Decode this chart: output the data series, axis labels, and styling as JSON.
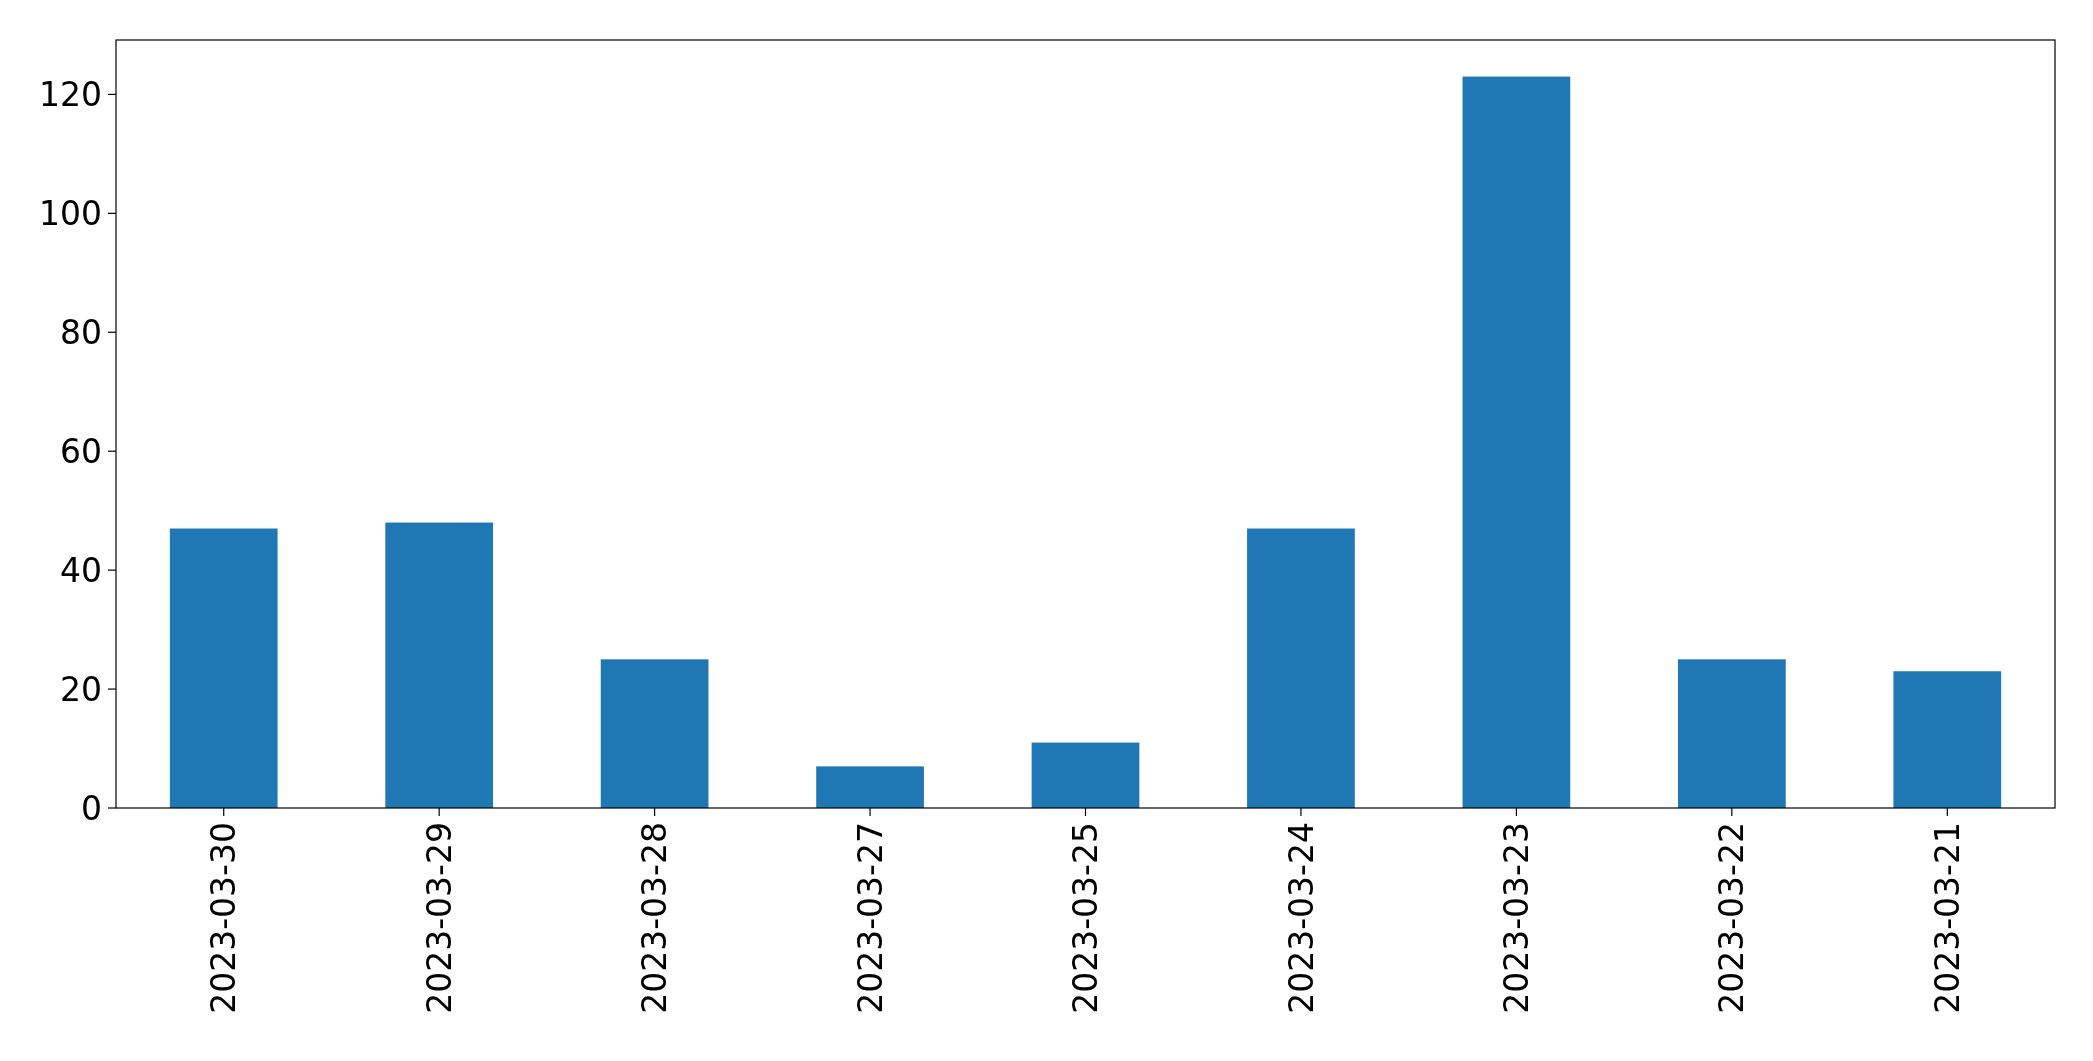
{
  "chart_data": {
    "type": "bar",
    "categories": [
      "2023-03-30",
      "2023-03-29",
      "2023-03-28",
      "2023-03-27",
      "2023-03-25",
      "2023-03-24",
      "2023-03-23",
      "2023-03-22",
      "2023-03-21"
    ],
    "values": [
      47,
      48,
      25,
      7,
      11,
      47,
      123,
      25,
      23
    ],
    "color": "#1f77b4",
    "ylim": [
      0,
      129.15
    ],
    "yticks": [
      0,
      20,
      40,
      60,
      80,
      100,
      120
    ],
    "grid": false
  }
}
